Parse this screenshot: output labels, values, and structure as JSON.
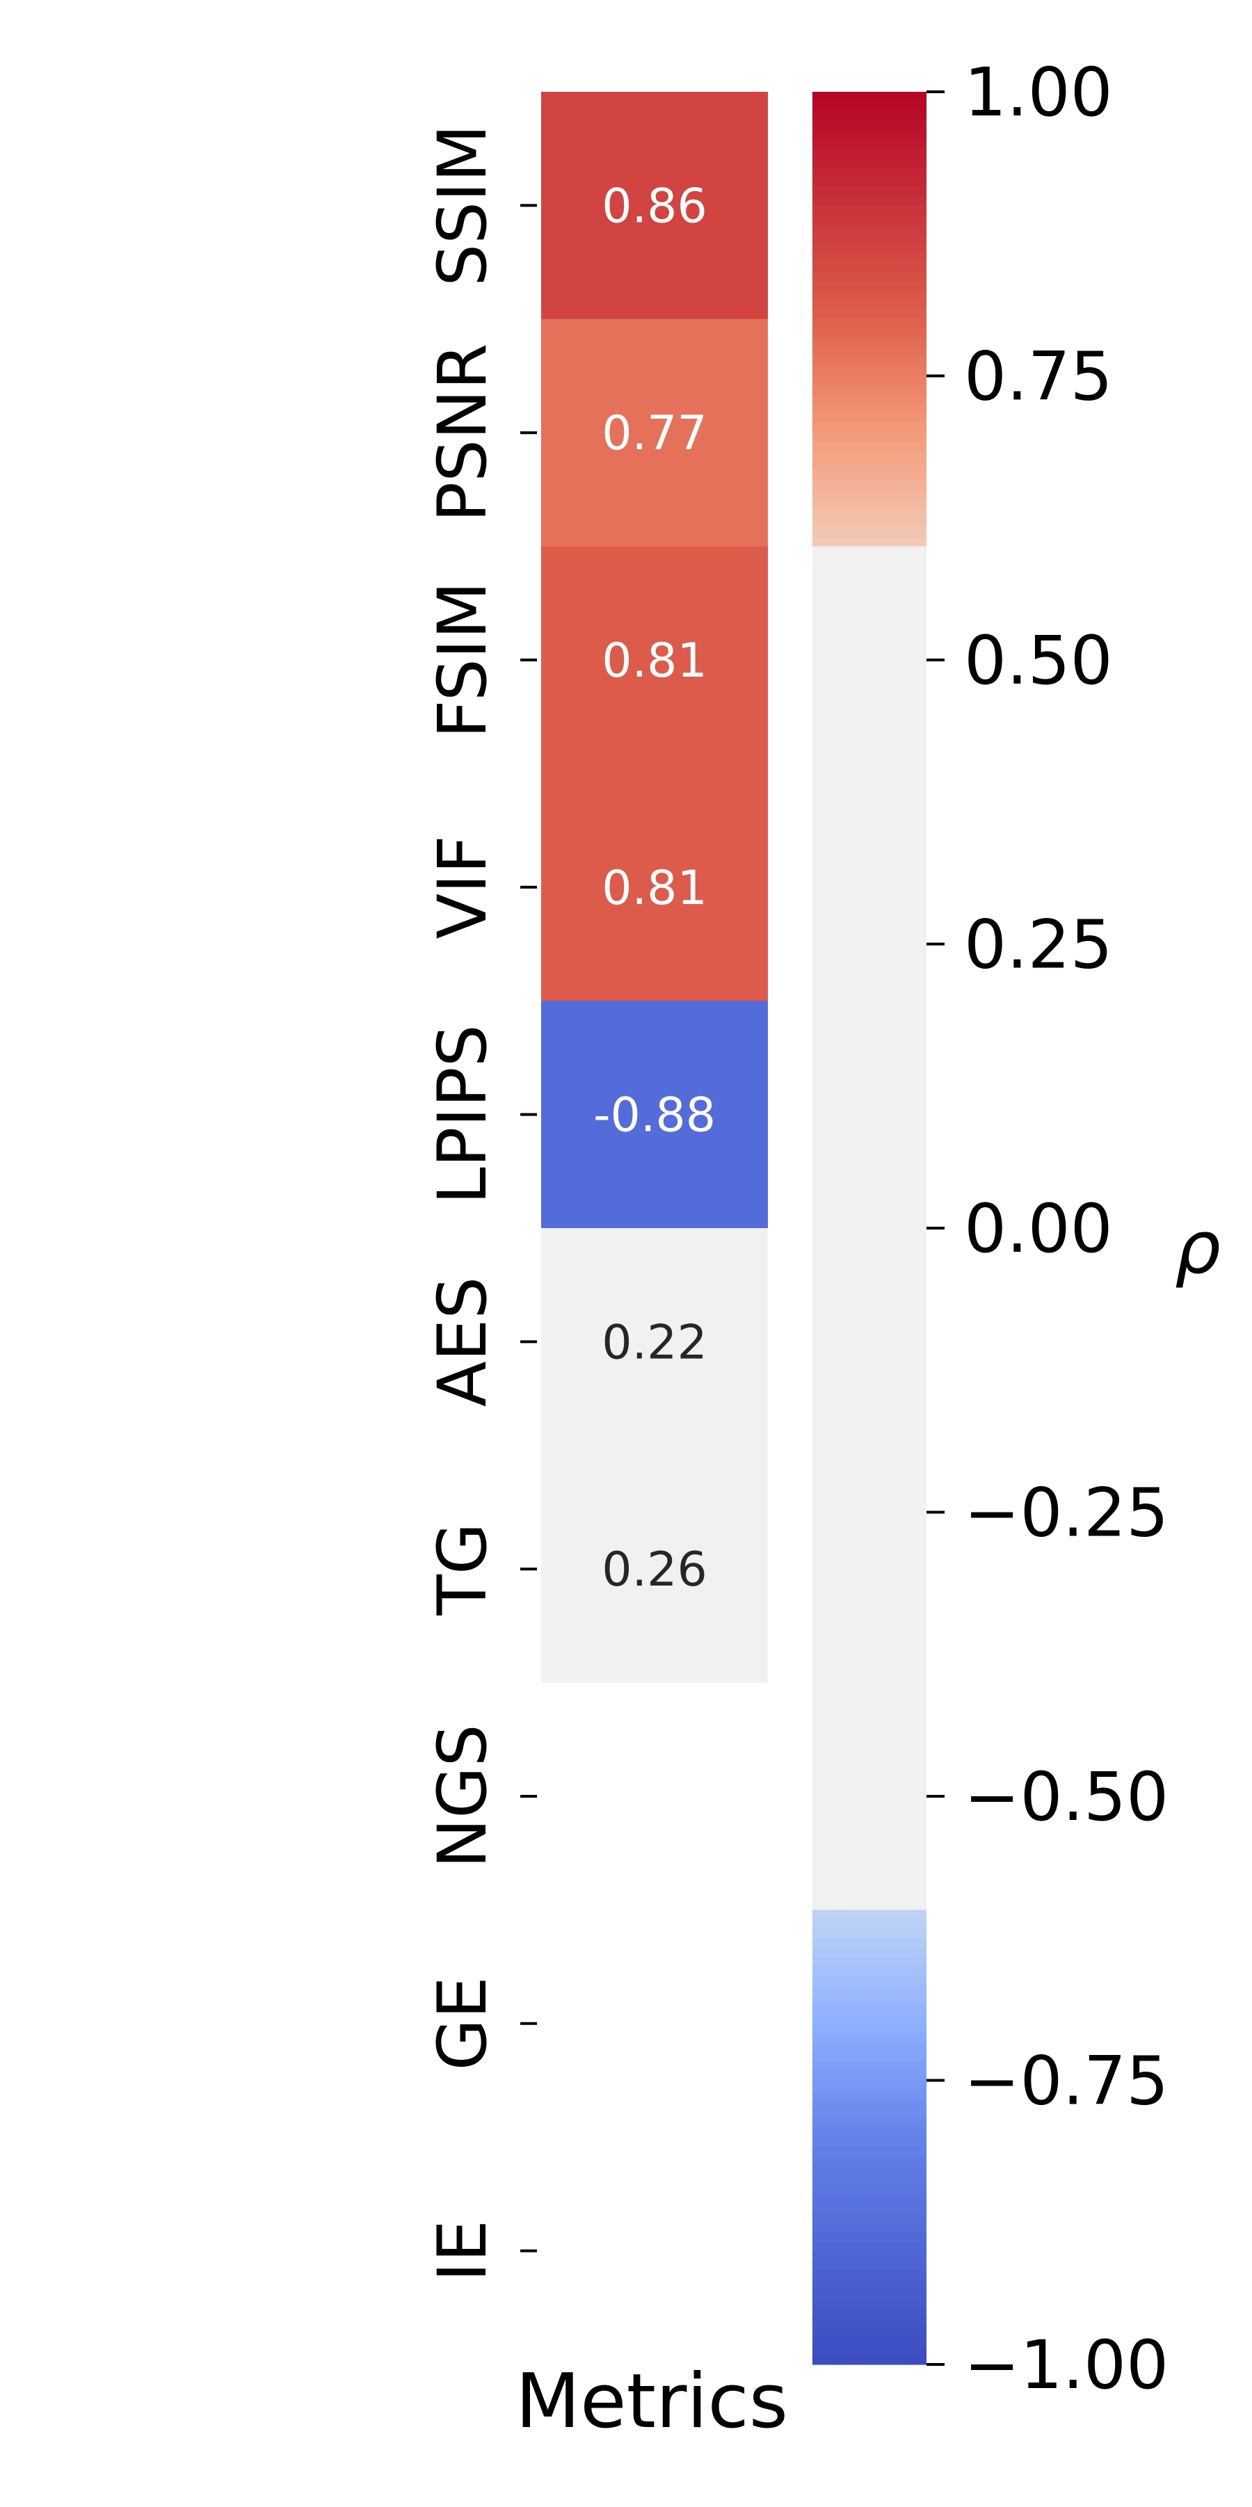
{
  "chart_data": {
    "type": "heatmap",
    "title": "",
    "xlabel": "Metrics",
    "rows": [
      "SSIM",
      "PSNR",
      "FSIM",
      "VIF",
      "LPIPS",
      "AES",
      "TG",
      "NGS",
      "GE",
      "IE"
    ],
    "values": [
      0.86,
      0.77,
      0.81,
      0.81,
      -0.88,
      0.22,
      0.26,
      null,
      null,
      null
    ],
    "value_labels": [
      "0.86",
      "0.77",
      "0.81",
      "0.81",
      "-0.88",
      "0.22",
      "0.26",
      "",
      "",
      ""
    ],
    "colorbar": {
      "label": "ρ",
      "range": [
        -1.0,
        1.0
      ],
      "ticks": [
        1.0,
        0.75,
        0.5,
        0.25,
        0.0,
        -0.25,
        -0.5,
        -0.75,
        -1.0
      ],
      "tick_labels": [
        "1.00",
        "0.75",
        "0.50",
        "0.25",
        "0.00",
        "−0.25",
        "−0.50",
        "−0.75",
        "−1.00"
      ],
      "neutral_band": [
        -0.6,
        0.6
      ],
      "cmap": "coolwarm"
    },
    "colors": {
      "neutral": "#f1f1f1",
      "low": "#3b4cc0",
      "high": "#b40426",
      "label_light": "#ffffff",
      "label_dark": "#262626"
    }
  }
}
